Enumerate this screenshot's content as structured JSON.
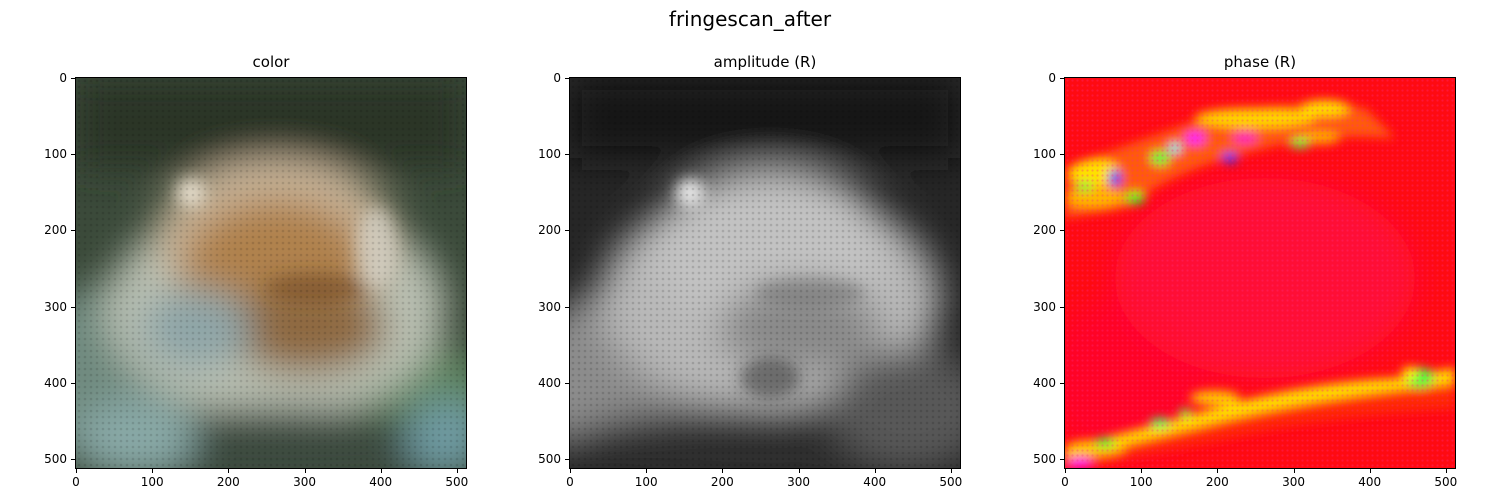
{
  "figure": {
    "title": "fringescan_after"
  },
  "panels": [
    {
      "id": "color",
      "title": "color",
      "image": "color-flower-reconstruction"
    },
    {
      "id": "amplitude",
      "title": "amplitude (R)",
      "image": "grayscale-amplitude-map"
    },
    {
      "id": "phase",
      "title": "phase (R)",
      "image": "hsv-phase-map"
    }
  ],
  "axes": {
    "y_ticks": [
      "0",
      "100",
      "200",
      "300",
      "400",
      "500"
    ],
    "y_values": [
      0,
      100,
      200,
      300,
      400,
      500
    ],
    "x_ticks": [
      "0",
      "100",
      "200",
      "300",
      "400",
      "500"
    ],
    "x_values": [
      0,
      100,
      200,
      300,
      400,
      500
    ],
    "extent": [
      0,
      511
    ]
  }
}
